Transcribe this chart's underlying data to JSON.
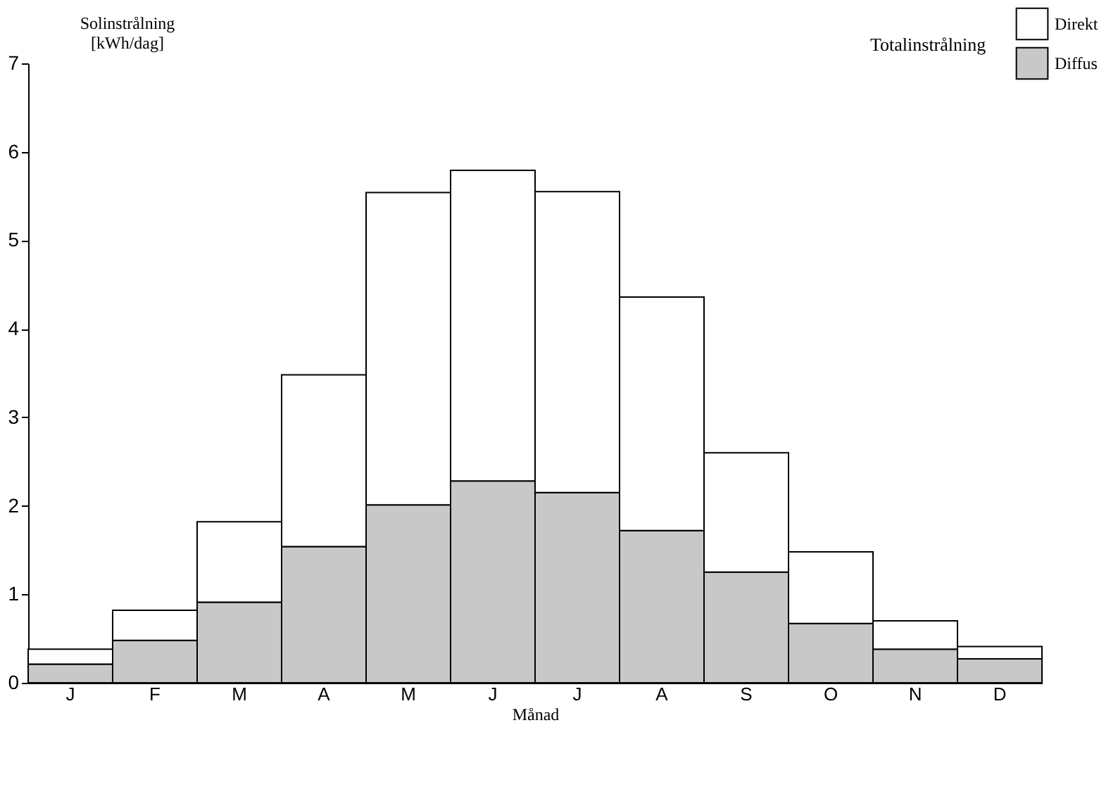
{
  "chart_data": {
    "type": "bar",
    "stacked": true,
    "xlabel": "Månad",
    "ylabel": "Solinstrålning [kWh/dag]",
    "legend_title": "Totalinstrålning",
    "categories": [
      "J",
      "F",
      "M",
      "A",
      "M",
      "J",
      "J",
      "A",
      "S",
      "O",
      "N",
      "D"
    ],
    "series": [
      {
        "name": "Diffus",
        "color": "#c8c8c8",
        "values": [
          0.21,
          0.48,
          0.91,
          1.54,
          2.01,
          2.28,
          2.15,
          1.72,
          1.25,
          0.67,
          0.38,
          0.27
        ]
      },
      {
        "name": "Direkt",
        "color": "#ffffff",
        "values": [
          0.17,
          0.34,
          0.91,
          1.94,
          3.53,
          3.51,
          3.4,
          2.64,
          1.35,
          0.81,
          0.32,
          0.14
        ]
      }
    ],
    "ylim": [
      0,
      7
    ],
    "yticks": [
      0,
      1,
      2,
      3,
      4,
      5,
      6,
      7
    ],
    "grid": false,
    "legend": "top right"
  }
}
